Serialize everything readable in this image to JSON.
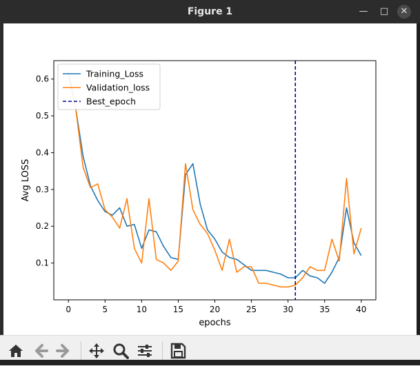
{
  "window": {
    "title": "Figure 1",
    "controls": {
      "minimize_icon": "minimize-icon",
      "maximize_icon": "maximize-icon",
      "close_icon": "close-icon"
    }
  },
  "toolbar": {
    "items": [
      {
        "name": "home-button",
        "icon": "home-icon"
      },
      {
        "name": "back-button",
        "icon": "arrow-left-icon"
      },
      {
        "name": "forward-button",
        "icon": "arrow-right-icon"
      },
      {
        "name": "pan-button",
        "icon": "move-icon"
      },
      {
        "name": "zoom-button",
        "icon": "magnifier-icon"
      },
      {
        "name": "configure-subplots-button",
        "icon": "sliders-icon"
      },
      {
        "name": "save-button",
        "icon": "floppy-disk-icon"
      }
    ]
  },
  "chart_data": {
    "type": "line",
    "title": "",
    "xlabel": "epochs",
    "ylabel": "Avg LOSS",
    "xlim": [
      -2,
      42
    ],
    "ylim": [
      0.0,
      0.65
    ],
    "xticks": [
      0,
      5,
      10,
      15,
      20,
      25,
      30,
      35,
      40
    ],
    "yticks": [
      0.1,
      0.2,
      0.3,
      0.4,
      0.5,
      0.6
    ],
    "legend_position": "top-left",
    "grid": false,
    "series": [
      {
        "name": "Training_Loss",
        "color": "#1f77b4",
        "style": "solid",
        "x": [
          0,
          1,
          2,
          3,
          4,
          5,
          6,
          7,
          8,
          9,
          10,
          11,
          12,
          13,
          14,
          15,
          16,
          17,
          18,
          19,
          20,
          21,
          22,
          23,
          24,
          25,
          26,
          27,
          28,
          29,
          30,
          31,
          32,
          33,
          34,
          35,
          36,
          37,
          38,
          39,
          40
        ],
        "y": [
          0.62,
          0.52,
          0.39,
          0.31,
          0.27,
          0.24,
          0.23,
          0.25,
          0.2,
          0.205,
          0.14,
          0.19,
          0.185,
          0.145,
          0.115,
          0.11,
          0.34,
          0.37,
          0.26,
          0.19,
          0.165,
          0.13,
          0.115,
          0.11,
          0.095,
          0.08,
          0.08,
          0.08,
          0.075,
          0.07,
          0.06,
          0.06,
          0.08,
          0.065,
          0.06,
          0.045,
          0.075,
          0.115,
          0.25,
          0.155,
          0.12
        ]
      },
      {
        "name": "Validation_loss",
        "color": "#ff7f0e",
        "style": "solid",
        "x": [
          0,
          1,
          2,
          3,
          4,
          5,
          6,
          7,
          8,
          9,
          10,
          11,
          12,
          13,
          14,
          15,
          16,
          17,
          18,
          19,
          20,
          21,
          22,
          23,
          24,
          25,
          26,
          27,
          28,
          29,
          30,
          31,
          32,
          33,
          34,
          35,
          36,
          37,
          38,
          39,
          40
        ],
        "y": [
          0.61,
          0.52,
          0.36,
          0.305,
          0.315,
          0.245,
          0.225,
          0.195,
          0.275,
          0.14,
          0.1,
          0.275,
          0.11,
          0.1,
          0.08,
          0.105,
          0.37,
          0.245,
          0.205,
          0.18,
          0.135,
          0.08,
          0.165,
          0.075,
          0.09,
          0.09,
          0.045,
          0.045,
          0.04,
          0.035,
          0.035,
          0.04,
          0.06,
          0.09,
          0.08,
          0.08,
          0.165,
          0.105,
          0.33,
          0.125,
          0.195
        ]
      }
    ],
    "vlines": [
      {
        "name": "Best_epoch",
        "x": 31,
        "color": "#00008b",
        "style": "dashed"
      }
    ]
  }
}
